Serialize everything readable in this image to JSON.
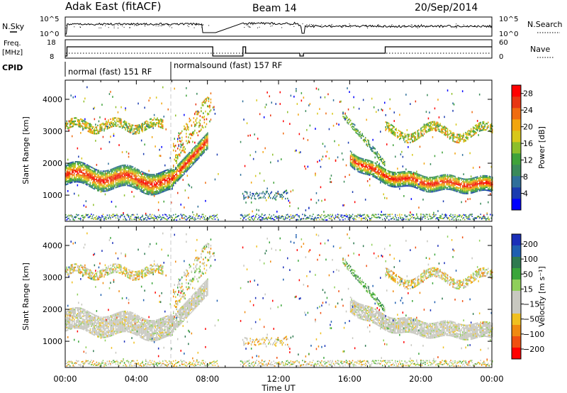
{
  "header": {
    "station": "Adak East (fitACF)",
    "beam": "Beam 14",
    "date": "20/Sep/2014"
  },
  "strip": {
    "nsky_label": "N.Sky",
    "nsky_ticks": [
      "10^5",
      "10^0"
    ],
    "nsearch_label": "N.Search",
    "freq_label_1": "Freq.",
    "freq_label_2": "[MHz]",
    "freq_ticks": [
      "18",
      "8"
    ],
    "nave_label": "Nave",
    "nave_ticks": [
      "60",
      "0"
    ],
    "cpid_label": "CPID",
    "cpid_1": "normal (fast) 151 RF",
    "cpid_2": "normalsound (fast) 157 RF"
  },
  "colors": {
    "power": [
      "#0000ff",
      "#1a3bb0",
      "#2f6f9a",
      "#3a8a5a",
      "#3fa23a",
      "#8dbf2a",
      "#d8c81a",
      "#f2a50f",
      "#f06c10",
      "#e83612",
      "#ff0000"
    ],
    "velocity": [
      "#1a2fb8",
      "#1f5fb0",
      "#2f7a50",
      "#3aa53a",
      "#8fcf5a",
      "#c8c8c0",
      "#c8c8c0",
      "#f0c020",
      "#f08a10",
      "#f05010",
      "#ff0000"
    ]
  },
  "chart_data": [
    {
      "type": "heatmap",
      "panel": "power",
      "xlabel": "Time UT",
      "ylabel": "Slant Range [km]",
      "x_ticks": [
        "00:00",
        "04:00",
        "08:00",
        "12:00",
        "16:00",
        "20:00",
        "00:00"
      ],
      "xlim_hours": [
        0,
        24
      ],
      "ylim": [
        180,
        4600
      ],
      "y_ticks": [
        1000,
        2000,
        3000,
        4000
      ],
      "colorbar_label": "Power [dB]",
      "colorbar_ticks": [
        4,
        8,
        12,
        16,
        20,
        24,
        28
      ],
      "colorbar_range": [
        0,
        30
      ]
    },
    {
      "type": "heatmap",
      "panel": "velocity",
      "xlabel": "Time UT",
      "ylabel": "Slant Range [km]",
      "x_ticks": [
        "00:00",
        "04:00",
        "08:00",
        "12:00",
        "16:00",
        "20:00",
        "00:00"
      ],
      "xlim_hours": [
        0,
        24
      ],
      "ylim": [
        180,
        4600
      ],
      "y_ticks": [
        1000,
        2000,
        3000,
        4000
      ],
      "colorbar_label": "Velocity [m s⁻¹]",
      "colorbar_ticks": [
        200,
        100,
        50,
        15,
        -15,
        -50,
        -100,
        -200
      ],
      "colorbar_range": [
        -250,
        250
      ]
    }
  ]
}
